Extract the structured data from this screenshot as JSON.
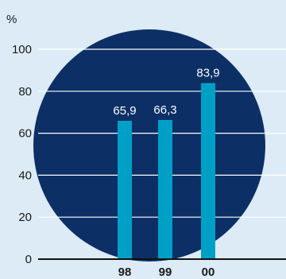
{
  "chart_data": {
    "type": "bar",
    "unit_label": "%",
    "categories": [
      "98",
      "99",
      "00"
    ],
    "values": [
      65.9,
      66.3,
      83.9
    ],
    "value_labels": [
      "65,9",
      "66,3",
      "83,9"
    ],
    "y_ticks": [
      0,
      20,
      40,
      60,
      80,
      100
    ],
    "ylim": [
      0,
      100
    ],
    "grid": true,
    "title": "",
    "xlabel": "",
    "ylabel": ""
  },
  "colors": {
    "background": "#dcebf6",
    "circle": "#0c2f66",
    "bar": "#00a0c6",
    "gridline": "#ffffff",
    "text_dark": "#1a1a1a",
    "text_light": "#ffffff",
    "axis": "#111111"
  }
}
